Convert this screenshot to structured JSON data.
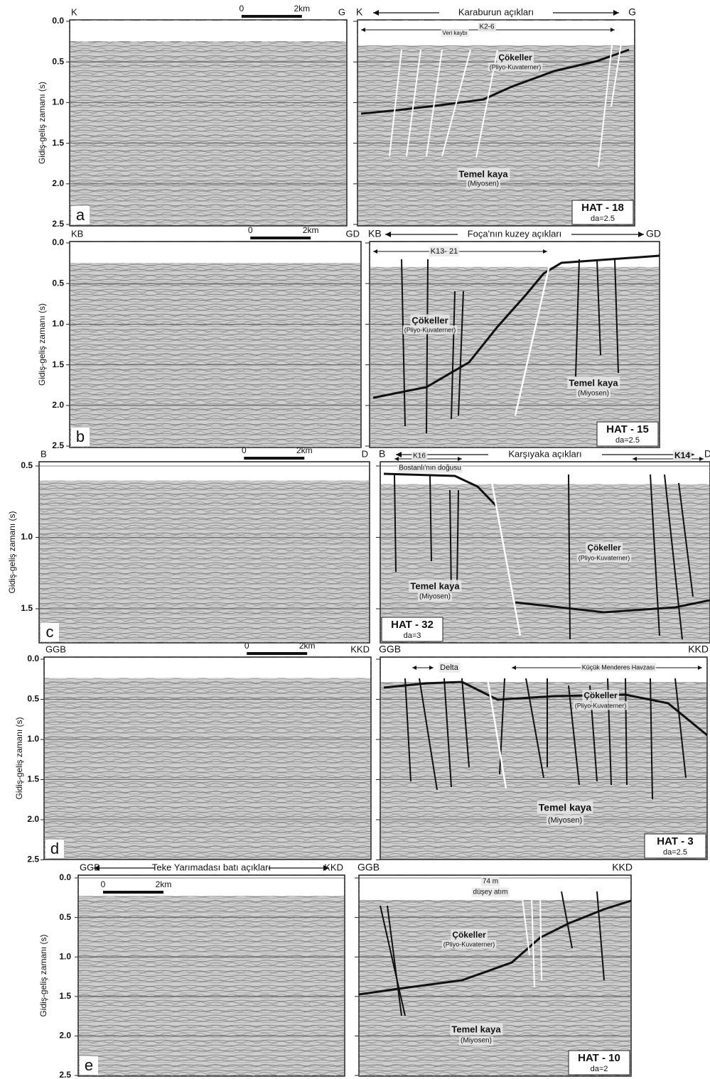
{
  "y_axis_label": "Gidiş-geliş zamanı (s)",
  "panels": [
    {
      "letter": "a",
      "yticks": [
        "0.0",
        "0.5",
        "1.0",
        "1.5",
        "2.0",
        "2.5"
      ],
      "left_start": "K",
      "left_end": "G",
      "scale_zero": "0",
      "scale_km": "2km",
      "right_start": "K",
      "right_end": "G",
      "region": "Karaburun açıkları",
      "annotations": [
        "K2-6",
        "Veri kaybı",
        "Çökeller",
        "(Pliyo-Kuvaterner)",
        "Temel kaya",
        "(Miyosen)"
      ],
      "hat": "HAT - 18",
      "da": "da=2.5"
    },
    {
      "letter": "b",
      "yticks": [
        "0.0",
        "0.5",
        "1.0",
        "1.5",
        "2.0",
        "2.5"
      ],
      "left_start": "KB",
      "left_end": "GD",
      "scale_zero": "0",
      "scale_km": "2km",
      "right_start": "KB",
      "right_end": "GD",
      "region": "Foça'nın kuzey açıkları",
      "annotations": [
        "K13- 21",
        "Çökeller",
        "(Pliyo-Kuvaterner)",
        "Temel kaya",
        "(Miyosen)"
      ],
      "hat": "HAT - 15",
      "da": "da=2.5"
    },
    {
      "letter": "c",
      "yticks": [
        "0.5",
        "1.0",
        "1.5"
      ],
      "left_start": "B",
      "left_end": "D",
      "scale_zero": "0",
      "scale_km": "2km",
      "right_start": "B",
      "right_end": "D",
      "region": "Karşıyaka açıkları",
      "annotations": [
        "K16",
        "Bostanlı'nın doğusu",
        "K14",
        "Çökeller",
        "(Pliyo-Kuvaterner)",
        "Temel kaya",
        "(Miyosen)"
      ],
      "hat": "HAT - 32",
      "da": "da=3"
    },
    {
      "letter": "d",
      "yticks": [
        "0.0",
        "0.5",
        "1.0",
        "1.5",
        "2.0",
        "2.5"
      ],
      "left_start": "GGB",
      "left_end": "KKD",
      "scale_zero": "0",
      "scale_km": "2km",
      "right_start": "GGB",
      "right_end": "KKD",
      "annotations": [
        "Delta",
        "Küçük Menderes Havzası",
        "Çökeller",
        "(Pliyo-Kuvaterner)",
        "Temel kaya",
        "(Miyosen)"
      ],
      "hat": "HAT - 3",
      "da": "da=2.5"
    },
    {
      "letter": "e",
      "yticks": [
        "0.0",
        "0.5",
        "1.0",
        "1.5",
        "2.0",
        "2.5"
      ],
      "left_start": "GGB",
      "left_end": "KKD",
      "scale_zero": "0",
      "scale_km": "2km",
      "right_start": "GGB",
      "right_end": "KKD",
      "region": "Teke Yarımadası batı açıkları",
      "annotations": [
        "74 m",
        "düşey atım",
        "Çökeller",
        "(Pliyo-Kuvaterner)",
        "Temel kaya",
        "(Miyosen)"
      ],
      "hat": "HAT - 10",
      "da": "da=2"
    }
  ]
}
